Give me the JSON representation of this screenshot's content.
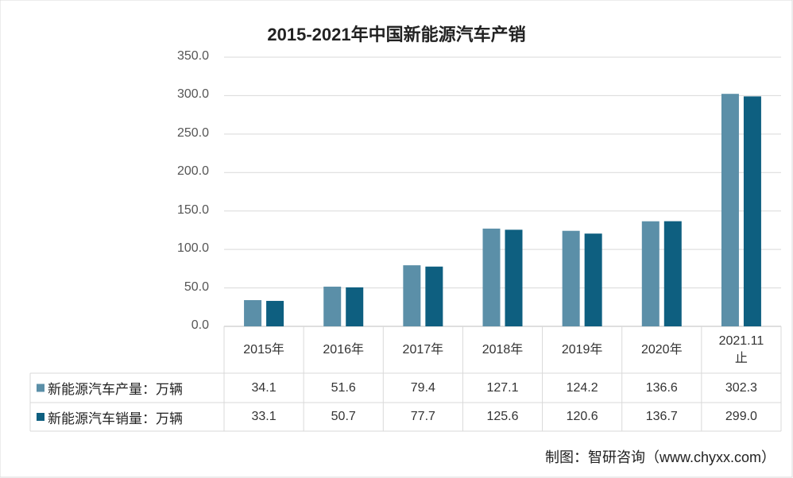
{
  "chart_data": {
    "type": "bar",
    "title": "2015-2021年中国新能源汽车产销",
    "categories": [
      "2015年",
      "2016年",
      "2017年",
      "2018年",
      "2019年",
      "2020年",
      "2021.11止"
    ],
    "series": [
      {
        "name": "新能源汽车产量：万辆",
        "color": "#5b8fa8",
        "values": [
          34.1,
          51.6,
          79.4,
          127.1,
          124.2,
          136.6,
          302.3
        ]
      },
      {
        "name": "新能源汽车销量：万辆",
        "color": "#0e5f80",
        "values": [
          33.1,
          50.7,
          77.7,
          125.6,
          120.6,
          136.7,
          299.0
        ],
        "value_labels": [
          "33.1",
          "50.7",
          "77.7",
          "125.6",
          "120.6",
          "136.7",
          "299.0"
        ]
      }
    ],
    "ylim": [
      0,
      350
    ],
    "yticks": [
      {
        "value": 0,
        "label": "0.0"
      },
      {
        "value": 50,
        "label": "50.0"
      },
      {
        "value": 100,
        "label": "100.0"
      },
      {
        "value": 150,
        "label": "150.0"
      },
      {
        "value": 200,
        "label": "200.0"
      },
      {
        "value": 250,
        "label": "250.0"
      },
      {
        "value": 300,
        "label": "300.0"
      },
      {
        "value": 350,
        "label": "350.0"
      }
    ],
    "grid": true,
    "source": "制图：智研咨询（www.chyxx.com）"
  }
}
